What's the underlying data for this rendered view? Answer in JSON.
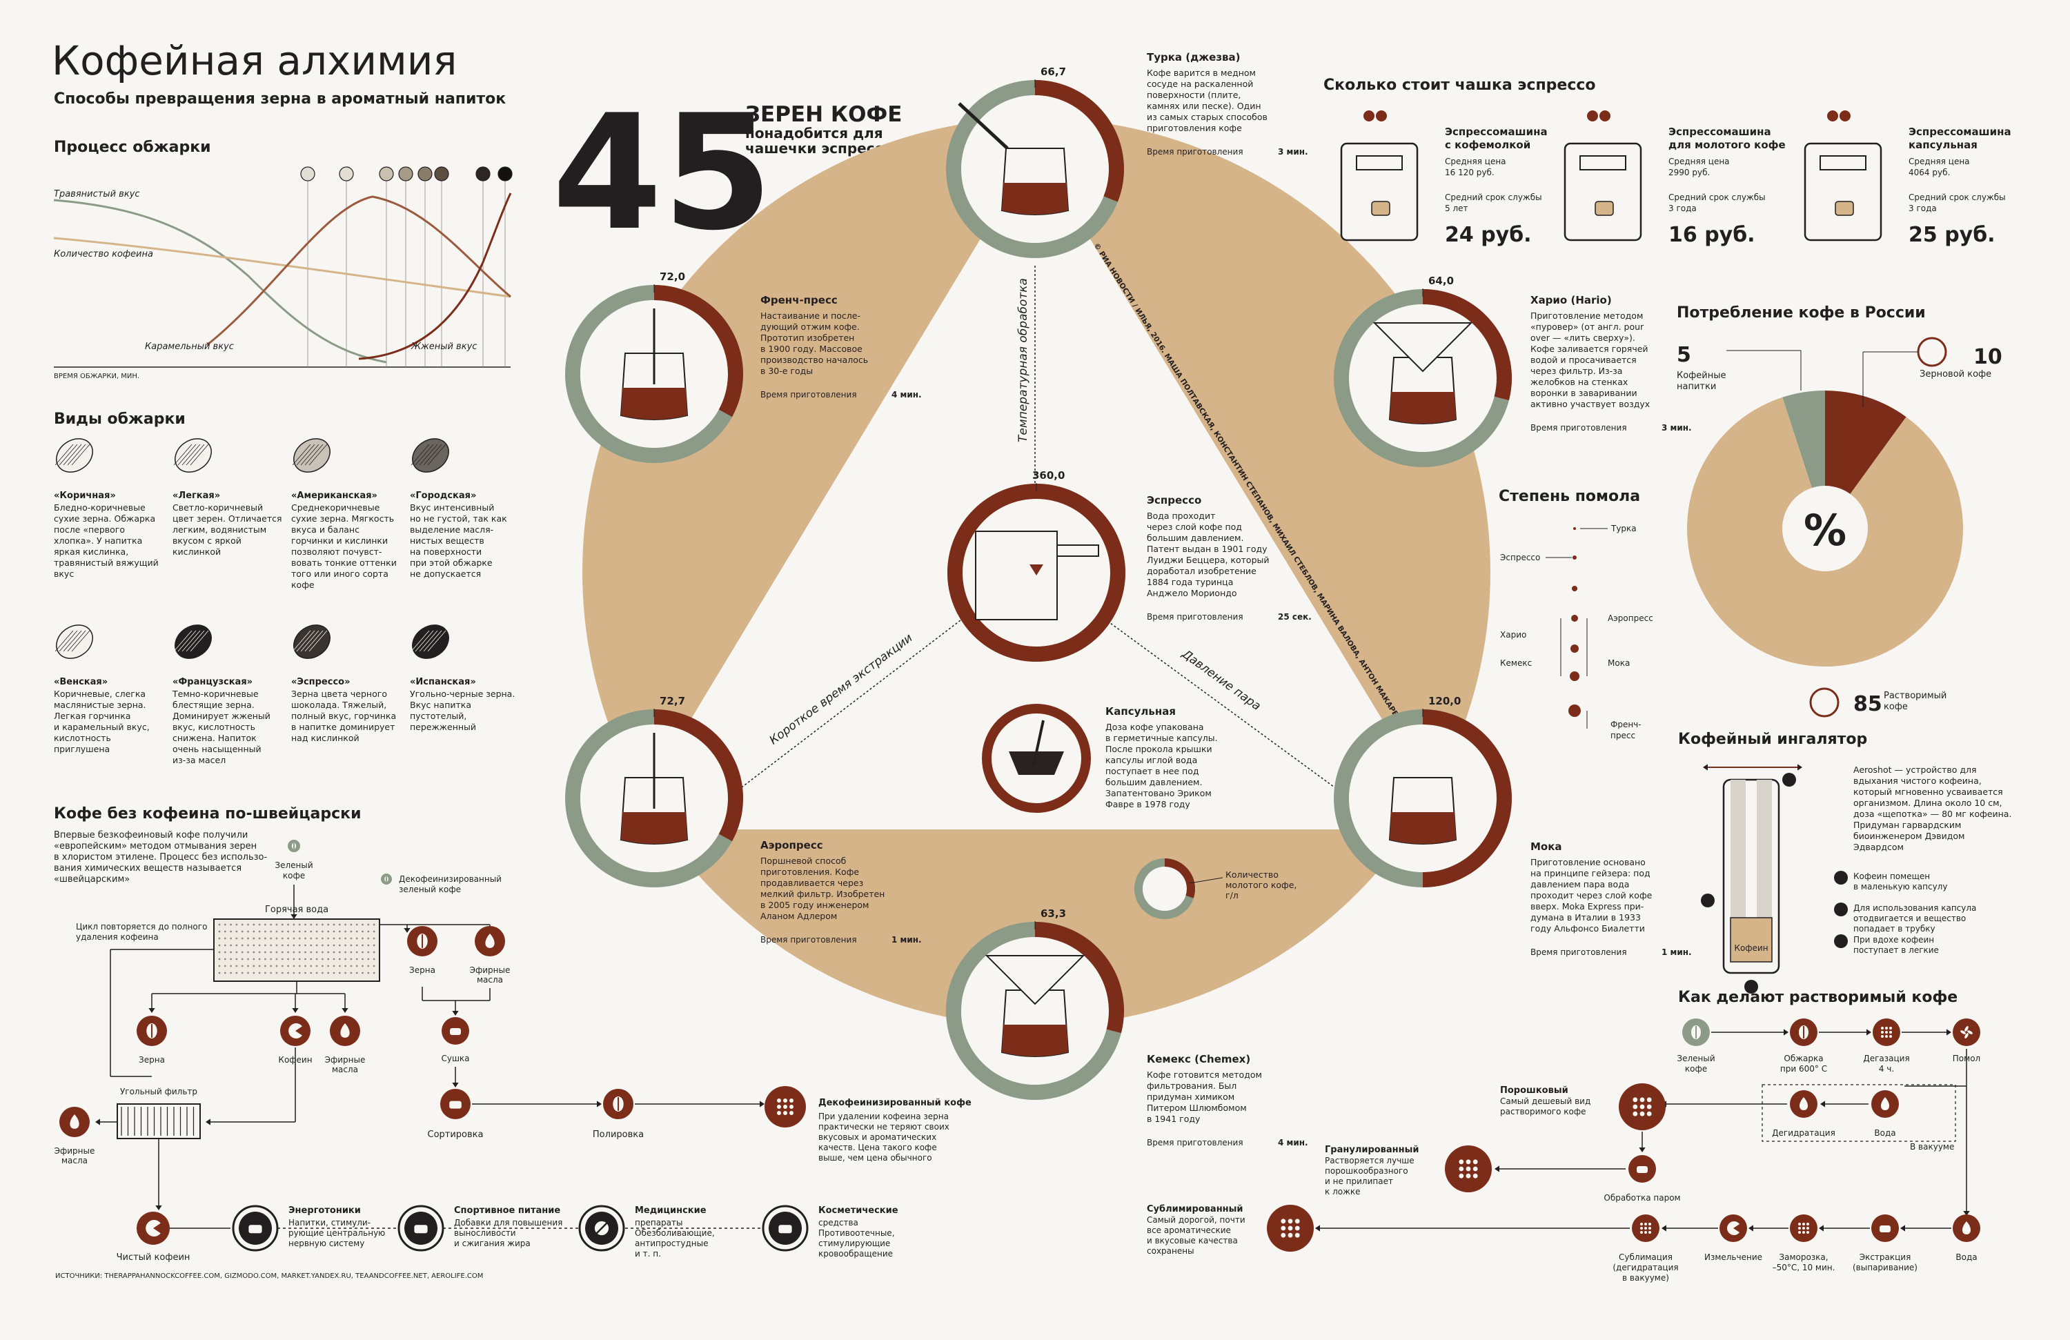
{
  "title": "Кофейная алхимия",
  "subtitle": "Способы превращения зерна в ароматный напиток",
  "colors": {
    "brown": "#7b2d1a",
    "tan": "#d6b48a",
    "sage": "#8b9b87",
    "cream": "#efe4d6",
    "ink": "#231f20",
    "bg": "#f8f6f3"
  },
  "big": {
    "number": "45",
    "lines": [
      "ЗЕРЕН КОФЕ",
      "понадобится для",
      "чашечки эспрессо"
    ]
  },
  "roast": {
    "title": "Процесс обжарки",
    "labels": [
      "Травянистый вкус",
      "Количество кофеина",
      "Карамельный вкус",
      "Жженый вкус"
    ],
    "axis": "ВРЕМЯ ОБЖАРКИ, МИН."
  },
  "types": {
    "title": "Виды обжарки",
    "items": [
      {
        "name": "«Коричная»",
        "lines": [
          "Бледно-коричневые",
          "сухие зерна. Обжарка",
          "после «первого",
          "хлопка». У напитка",
          "яркая кислинка,",
          "травянистый вяжущий",
          "вкус"
        ]
      },
      {
        "name": "«Легкая»",
        "lines": [
          "Светло-коричневый",
          "цвет зерен. Отличается",
          "легким, водянистым",
          "вкусом с яркой",
          "кислинкой"
        ]
      },
      {
        "name": "«Американская»",
        "lines": [
          "Среднекоричневые",
          "сухие зерна. Мягкость",
          "вкуса и баланс",
          "горчинки и кислинки",
          "позволяют почувст-",
          "вовать тонкие оттенки",
          "того или иного сорта",
          "кофе"
        ]
      },
      {
        "name": "«Городская»",
        "lines": [
          "Вкус интенсивный",
          "но не густой, так как",
          "выделение масля-",
          "нистых веществ",
          "на поверхности",
          "при этой обжарке",
          "не допускается"
        ]
      },
      {
        "name": "«Венская»",
        "lines": [
          "Коричневые, слегка",
          "маслянистые зерна.",
          "Легкая горчинка",
          "и карамельный вкус,",
          "кислотность",
          "приглушена"
        ]
      },
      {
        "name": "«Французская»",
        "lines": [
          "Темно-коричневые",
          "блестящие зерна.",
          "Доминирует жженый",
          "вкус, кислотность",
          "снижена. Напиток",
          "очень насыщенный",
          "из-за масел"
        ]
      },
      {
        "name": "«Эспрессо»",
        "lines": [
          "Зерна цвета черного",
          "шоколада. Тяжелый,",
          "полный вкус, горчинка",
          "в напитке доминирует",
          "над кислинкой"
        ]
      },
      {
        "name": "«Испанская»",
        "lines": [
          "Угольно-черные зерна.",
          "Вкус напитка",
          "пустотелый,",
          "пережженный"
        ]
      }
    ]
  },
  "swiss": {
    "title": "Кофе без кофеина по-швейцарски",
    "lines": [
      "Впервые безкофеиновый кофе получили",
      "«европейским» методом отмывания зерен",
      "в хлористом этилене. Процесс без использо-",
      "вания химических веществ называется",
      "«швейцарским»"
    ],
    "labels": {
      "green": "Зеленый кофе",
      "decaf_green": "Декофеинизированный зеленый кофе",
      "hot_water": "Горячая вода",
      "cycle": "Цикл повторяется до полного удаления кофеина",
      "beans": "Зерна",
      "caffeine": "Кофеин",
      "oils": "Эфирные масла",
      "carbon": "Угольный фильтр",
      "oils2": "Эфирные масла",
      "clean": "Чистый кофеин",
      "beans2": "Зерна",
      "oils3": "Эфирные масла",
      "dry": "Сушка",
      "sort": "Сортировка",
      "polish": "Полировка",
      "decaf_title": "Декофеинизированный кофе",
      "decaf_lines": [
        "При удалении кофеина зерна",
        "практически не теряют своих",
        "вкусовых и ароматических",
        "качеств. Цена такого кофе",
        "выше, чем цена обычного"
      ]
    },
    "uses": [
      {
        "title": "Энерготоники",
        "lines": [
          "Напитки, стимули-",
          "рующие центральную",
          "нервную систему"
        ]
      },
      {
        "title": "Спортивное питание",
        "lines": [
          "Добавки для повышения",
          "выносливости",
          "и сжигания жира"
        ]
      },
      {
        "title": "Медицинские",
        "lines": [
          "препараты",
          "Обезболивающие,",
          "антипростудные",
          "и т. п."
        ]
      },
      {
        "title": "Косметические",
        "lines": [
          "средства",
          "Противоотечные,",
          "стимулирующие",
          "кровообращение"
        ]
      }
    ]
  },
  "sources": "ИСТОЧНИКИ: THERAPPAHANNOCKCOFFEE.COM, GIZMODO.COM, MARKET.YANDEX.RU, TEAANDCOFFEE.NET, AEROLIFE.COM",
  "credit": "© РИА НОВОСТИ / ИЛЬЯ, 2016. МАША ПОЛТАВСКАЯ, КОНСТАНТИН СТЕПАНОВ, МИХАИЛ СТЕБЛОВ, МАРИНА ВАЛОВА, АНТОН МАКАРЕНКОВ, АЛЕКСЕЙ ИПЬИН",
  "axes": {
    "temp": "Температурная обработка",
    "time": "Короткое время экстракции",
    "pressure": "Давление пара"
  },
  "methods": [
    {
      "id": "turka",
      "value": "66,7",
      "name": "Турка (джезва)",
      "lines": [
        "Кофе варится в медном",
        "сосуде на раскаленной",
        "поверхности (плите,",
        "камнях или песке). Один",
        "из самых старых способов",
        "приготовления кофе"
      ],
      "time_label": "Время приготовления",
      "time": "3 мин.",
      "fraction": 0.31
    },
    {
      "id": "french",
      "value": "72,0",
      "name": "Френч-пресс",
      "lines": [
        "Настаивание и после-",
        "дующий отжим кофе.",
        "Прототип изобретен",
        "в 1900 году. Массовое",
        "производство началось",
        "в 30-е годы"
      ],
      "time_label": "Время приготовления",
      "time": "4 мин.",
      "fraction": 0.33
    },
    {
      "id": "hario",
      "value": "64,0",
      "name": "Харио (Hario)",
      "lines": [
        "Приготовление методом",
        "«пуровер» (от англ. pour",
        "over — «лить сверху»).",
        "Кофе заливается горячей",
        "водой и просачивается",
        "через фильтр. Из-за",
        "желобков на стенках",
        "воронки в заваривании",
        "активно участвует воздух"
      ],
      "time_label": "Время приготовления",
      "time": "3 мин.",
      "fraction": 0.29
    },
    {
      "id": "espresso",
      "value": "360,0",
      "name": "Эспрессо",
      "lines": [
        "Вода проходит",
        "через слой кофе под",
        "большим давлением.",
        "Патент выдан в 1901 году",
        "Луиджи Беццера, который",
        "доработал изобретение",
        "1884 года туринца",
        "Анджело Мориондо"
      ],
      "time_label": "Время приготовления",
      "time": "25 сек.",
      "fraction": 1.0
    },
    {
      "id": "capsule",
      "value": "",
      "name": "Капсульная",
      "lines": [
        "Доза кофе упакована",
        "в герметичные капсулы.",
        "После прокола крышки",
        "капсулы иглой вода",
        "поступает в нее под",
        "большим давлением.",
        "Запатентовано Эриком",
        "Фавре в 1978 году"
      ],
      "time_label": "",
      "time": "",
      "fraction": 0.0
    },
    {
      "id": "aero",
      "value": "72,7",
      "name": "Аэропресс",
      "lines": [
        "Поршневой способ",
        "приготовления. Кофе",
        "продавливается через",
        "мелкий фильтр. Изобретен",
        "в 2005 году инженером",
        "Аланом Адлером"
      ],
      "time_label": "Время приготовления",
      "time": "1 мин.",
      "fraction": 0.33
    },
    {
      "id": "moka",
      "value": "120,0",
      "name": "Мока",
      "lines": [
        "Приготовление основано",
        "на принципе гейзера: под",
        "давлением пара вода",
        "проходит через слой кофе",
        "вверх. Moka Express при-",
        "думана в Италии в 1933",
        "году Альфонсо Биалетти"
      ],
      "time_label": "Время приготовления",
      "time": "1 мин.",
      "fraction": 0.5
    },
    {
      "id": "chemex",
      "value": "63,3",
      "name": "Кемекс (Chemex)",
      "lines": [
        "Кофе готовится методом",
        "фильтрования. Был",
        "придуман химиком",
        "Питером Шлюмбомом",
        "в 1941 году"
      ],
      "time_label": "Время приготовления",
      "time": "4 мин.",
      "fraction": 0.29
    }
  ],
  "legend_ground": [
    "Количество",
    "молотого кофе,",
    "г/л"
  ],
  "price": {
    "title": "Сколько стоит чашка эспрессо",
    "items": [
      {
        "name": [
          "Эспрессомашина",
          "с кофемолкой"
        ],
        "price_label": "Средняя цена",
        "price": "16 120 руб.",
        "life_label": "Средний срок службы",
        "life": "5 лет",
        "cup": "24 руб."
      },
      {
        "name": [
          "Эспрессомашина",
          "для молотого кофе"
        ],
        "price_label": "Средняя цена",
        "price": "2990 руб.",
        "life_label": "Средний срок службы",
        "life": "3 года",
        "cup": "16 руб."
      },
      {
        "name": [
          "Эспрессомашина",
          "капсульная"
        ],
        "price_label": "Средняя цена",
        "price": "4064 руб.",
        "life_label": "Средний срок службы",
        "life": "3 года",
        "cup": "25 руб."
      }
    ]
  },
  "consumption": {
    "title": "Потребление кофе в России",
    "symbol": "%",
    "slices": [
      {
        "value": 5,
        "label": [
          "Кофейные",
          "напитки"
        ],
        "color": "#8b9b87"
      },
      {
        "value": 10,
        "label": [
          "Зерновой кофе"
        ],
        "color": "#7b2d1a"
      },
      {
        "value": 85,
        "label": [
          "Растворимый",
          "кофе"
        ],
        "color": "#d6b48a"
      }
    ]
  },
  "grind": {
    "title": "Степень помола",
    "items": [
      "Турка",
      "Эспрессо",
      "Аэропресс",
      "Харио",
      "Мока",
      "Кемекс",
      "Френч-",
      "пресс"
    ]
  },
  "inhaler": {
    "title": "Кофейный ингалятор",
    "lines": [
      "Aeroshot — устройство для",
      "вдыхания чистого кофеина,",
      "который мгновенно усваивается",
      "организмом. Длина около 10 см,",
      "доза «щепотка» — 80 мг кофеина.",
      "Придуман гарвардским",
      "биоинженером Дэвидом",
      "Эдвардсом"
    ],
    "capsule_label": "Кофеин",
    "steps": [
      [
        "Кофеин помещен",
        "в маленькую капсулу"
      ],
      [
        "Для использования капсула",
        "отодвигается и вещество",
        "попадает в трубку"
      ],
      [
        "При вдохе кофеин",
        "поступает в легкие"
      ]
    ]
  },
  "instant": {
    "title": "Как делают  растворимый кофе",
    "steps": [
      [
        "Зеленый",
        "кофе"
      ],
      [
        "Обжарка",
        "при 600° С"
      ],
      [
        "Дегазация",
        "4 ч."
      ],
      [
        "Помол"
      ],
      [
        "Вода"
      ],
      [
        "Экстракция",
        "(выпаривание)"
      ],
      [
        "Заморозка,",
        "–50°С, 10 мин."
      ],
      [
        "Измельчение"
      ],
      [
        "Сублимация",
        "(дегидратация",
        "в вакууме)"
      ],
      [
        "Дегидратация"
      ],
      [
        "Вода"
      ],
      [
        "Обработка паром"
      ]
    ],
    "vacuum": "В вакууме",
    "products": [
      {
        "title": "Порошковый",
        "lines": [
          "Самый дешевый вид",
          "растворимого кофе"
        ]
      },
      {
        "title": "Гранулированный",
        "lines": [
          "Растворяется лучше",
          "порошкообразного",
          "и не прилипает",
          "к ложке"
        ]
      },
      {
        "title": "Сублимированный",
        "lines": [
          "Самый дорогой, почти",
          "все ароматические",
          "и вкусовые качества",
          "сохранены"
        ]
      }
    ]
  }
}
